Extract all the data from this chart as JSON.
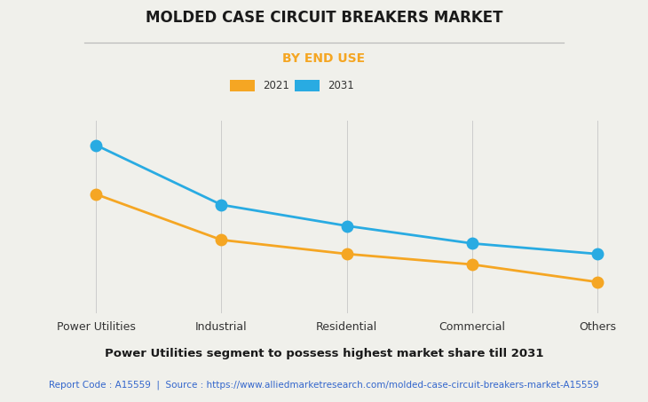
{
  "title": "MOLDED CASE CIRCUIT BREAKERS MARKET",
  "subtitle": "BY END USE",
  "categories": [
    "Power Utilities",
    "Industrial",
    "Residential",
    "Commercial",
    "Others"
  ],
  "series_2021": [
    0.68,
    0.42,
    0.34,
    0.28,
    0.18
  ],
  "series_2031": [
    0.96,
    0.62,
    0.5,
    0.4,
    0.34
  ],
  "color_2021": "#F5A623",
  "color_2031": "#29ABE2",
  "legend_2021": "2021",
  "legend_2031": "2031",
  "footer_bold": "Power Utilities segment to possess highest market share till 2031",
  "report_code": "Report Code : A15559  |  Source : https://www.alliedmarketresearch.com/molded-case-circuit-breakers-market-A15559",
  "background_color": "#F0F0EB",
  "plot_background": "#F0F0EB",
  "title_fontsize": 12,
  "subtitle_fontsize": 10,
  "footer_fontsize": 9.5,
  "report_fontsize": 7.5,
  "subtitle_color": "#F5A623",
  "report_color": "#3366CC",
  "grid_color": "#CCCCCC",
  "line_width": 2.0,
  "marker_size": 9
}
